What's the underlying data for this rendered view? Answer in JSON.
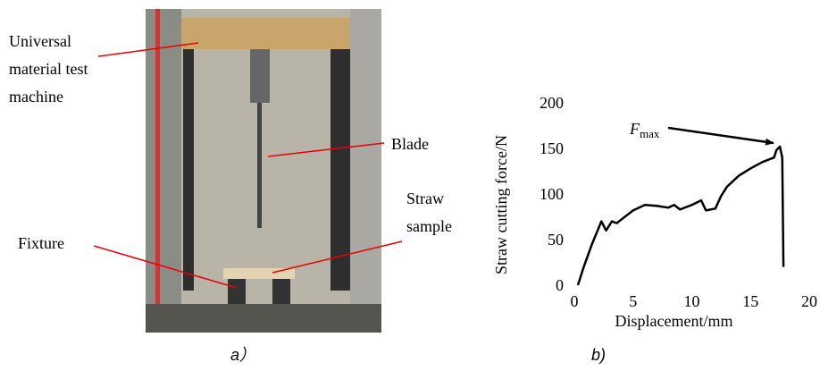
{
  "photo": {
    "labels": {
      "machine": [
        "Universal",
        "material test",
        "machine"
      ],
      "blade": [
        "Blade"
      ],
      "sample": [
        "Straw",
        "sample"
      ],
      "fixture": [
        "Fixture"
      ]
    }
  },
  "captions": {
    "a": "a）",
    "b": "b)"
  },
  "chart_data": {
    "type": "line",
    "annotation": {
      "text": "F",
      "subscript": "max"
    },
    "xlabel": "Displacement/mm",
    "ylabel": "Straw cutting force/N",
    "xlim": [
      0,
      20
    ],
    "ylim": [
      0,
      200
    ],
    "xticks": [
      0,
      5,
      10,
      15,
      20
    ],
    "yticks": [
      0,
      50,
      100,
      150,
      200
    ],
    "series": [
      {
        "color": "#000000",
        "x": [
          0.3,
          0.8,
          1.5,
          2.3,
          2.7,
          3.2,
          3.6,
          4.0,
          5.0,
          6.0,
          7.0,
          8.0,
          8.5,
          9.0,
          10.0,
          10.8,
          11.2,
          12.0,
          12.5,
          13.0,
          14.0,
          15.0,
          16.0,
          17.0,
          17.2,
          17.5,
          17.7,
          17.8
        ],
        "values": [
          0,
          20,
          45,
          70,
          60,
          70,
          68,
          72,
          82,
          88,
          87,
          85,
          88,
          83,
          88,
          93,
          82,
          84,
          98,
          108,
          120,
          128,
          135,
          140,
          148,
          152,
          140,
          20
        ]
      }
    ]
  }
}
